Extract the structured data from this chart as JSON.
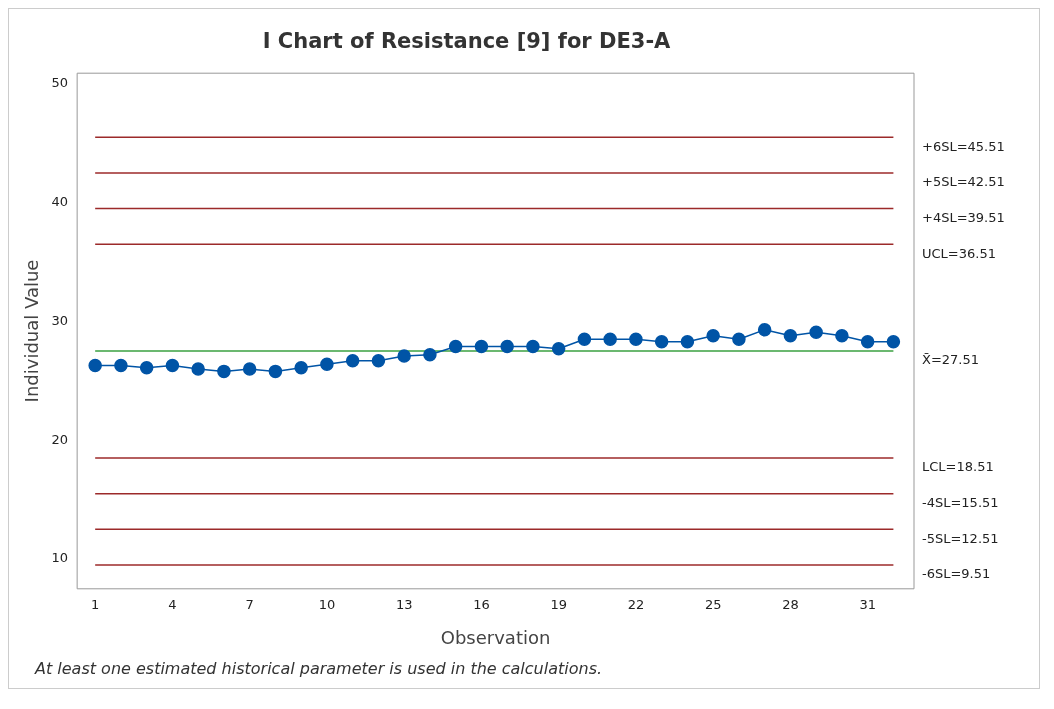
{
  "chart_data": {
    "type": "line",
    "title": "I Chart of Resistance [9] for DE3-A",
    "xlabel": "Observation",
    "ylabel": "Individual Value",
    "x": [
      1,
      2,
      3,
      4,
      5,
      6,
      7,
      8,
      9,
      10,
      11,
      12,
      13,
      14,
      15,
      16,
      17,
      18,
      19,
      20,
      21,
      22,
      23,
      24,
      25,
      26,
      27,
      28,
      29,
      30,
      31,
      32
    ],
    "series": [
      {
        "color": "#0054a6",
        "values": [
          26.3,
          26.3,
          26.1,
          26.3,
          26.0,
          25.8,
          26.0,
          25.8,
          26.1,
          26.4,
          26.7,
          26.7,
          27.1,
          27.2,
          27.9,
          27.9,
          27.9,
          27.9,
          27.7,
          28.5,
          28.5,
          28.5,
          28.3,
          28.3,
          28.8,
          28.5,
          29.3,
          28.8,
          29.1,
          28.8,
          28.3,
          28.3
        ]
      }
    ],
    "xlim": [
      0.3,
      32.8
    ],
    "xticks": [
      1,
      4,
      7,
      10,
      13,
      16,
      19,
      22,
      25,
      28,
      31
    ],
    "ylim": [
      7.5,
      50.9
    ],
    "yticks": [
      10,
      20,
      30,
      40,
      50
    ],
    "ref_lines": [
      {
        "axis": "y",
        "value": 45.51,
        "label": "+6SL=45.51",
        "color": "#9c2a2a"
      },
      {
        "axis": "y",
        "value": 42.51,
        "label": "+5SL=42.51",
        "color": "#9c2a2a"
      },
      {
        "axis": "y",
        "value": 39.51,
        "label": "+4SL=39.51",
        "color": "#9c2a2a"
      },
      {
        "axis": "y",
        "value": 36.51,
        "label": "UCL=36.51",
        "color": "#9c2a2a"
      },
      {
        "axis": "y",
        "value": 27.51,
        "label": "X̄=27.51",
        "color": "#3aa040"
      },
      {
        "axis": "y",
        "value": 18.51,
        "label": "LCL=18.51",
        "color": "#9c2a2a"
      },
      {
        "axis": "y",
        "value": 15.51,
        "label": "-4SL=15.51",
        "color": "#9c2a2a"
      },
      {
        "axis": "y",
        "value": 12.51,
        "label": "-5SL=12.51",
        "color": "#9c2a2a"
      },
      {
        "axis": "y",
        "value": 9.51,
        "label": "-6SL=9.51",
        "color": "#9c2a2a"
      }
    ],
    "annotations": [
      "At least one estimated historical parameter is used in the calculations."
    ],
    "marker": "circle",
    "line_style": "solid",
    "grid": false,
    "legend": false
  }
}
